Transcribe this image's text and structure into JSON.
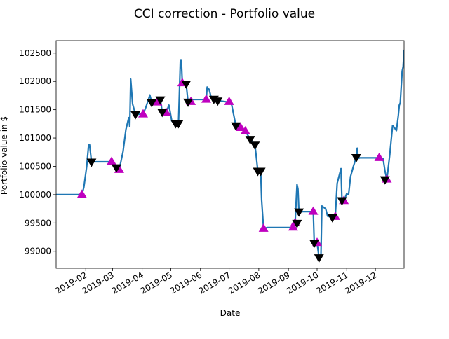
{
  "chart_data": {
    "type": "line",
    "title": "CCI correction - Portfolio value",
    "xlabel": "Date",
    "ylabel": "Portfolio value in $",
    "xlim": [
      "2019-01-01",
      "2019-12-31"
    ],
    "ylim": [
      98700,
      102720
    ],
    "grid": false,
    "x_ticks": [
      {
        "date": "2019-02-01",
        "label": "2019-02"
      },
      {
        "date": "2019-03-01",
        "label": "2019-03"
      },
      {
        "date": "2019-04-01",
        "label": "2019-04"
      },
      {
        "date": "2019-05-01",
        "label": "2019-05"
      },
      {
        "date": "2019-06-01",
        "label": "2019-06"
      },
      {
        "date": "2019-07-01",
        "label": "2019-07"
      },
      {
        "date": "2019-08-01",
        "label": "2019-08"
      },
      {
        "date": "2019-09-01",
        "label": "2019-09"
      },
      {
        "date": "2019-10-01",
        "label": "2019-10"
      },
      {
        "date": "2019-11-01",
        "label": "2019-11"
      },
      {
        "date": "2019-12-01",
        "label": "2019-12"
      }
    ],
    "y_ticks": [
      99000,
      99500,
      100000,
      100500,
      101000,
      101500,
      102000,
      102500
    ],
    "series": [
      {
        "color": "#1f77b4",
        "points": [
          [
            "2019-01-01",
            100000
          ],
          [
            "2019-01-27",
            100000
          ],
          [
            "2019-01-28",
            100000
          ],
          [
            "2019-01-30",
            100130
          ],
          [
            "2019-02-02",
            100500
          ],
          [
            "2019-02-04",
            100880
          ],
          [
            "2019-02-05",
            100880
          ],
          [
            "2019-02-07",
            100580
          ],
          [
            "2019-02-28",
            100580
          ],
          [
            "2019-03-02",
            100580
          ],
          [
            "2019-03-04",
            100480
          ],
          [
            "2019-03-08",
            100440
          ],
          [
            "2019-03-12",
            100760
          ],
          [
            "2019-03-15",
            101150
          ],
          [
            "2019-03-18",
            101360
          ],
          [
            "2019-03-19",
            101200
          ],
          [
            "2019-03-20",
            102040
          ],
          [
            "2019-03-22",
            101600
          ],
          [
            "2019-03-25",
            101420
          ],
          [
            "2019-04-02",
            101420
          ],
          [
            "2019-04-05",
            101550
          ],
          [
            "2019-04-08",
            101700
          ],
          [
            "2019-04-09",
            101760
          ],
          [
            "2019-04-11",
            101630
          ],
          [
            "2019-04-17",
            101630
          ],
          [
            "2019-04-20",
            101680
          ],
          [
            "2019-04-22",
            101460
          ],
          [
            "2019-04-26",
            101450
          ],
          [
            "2019-04-29",
            101580
          ],
          [
            "2019-05-02",
            101300
          ],
          [
            "2019-05-06",
            101260
          ],
          [
            "2019-05-09",
            101260
          ],
          [
            "2019-05-11",
            102380
          ],
          [
            "2019-05-12",
            102380
          ],
          [
            "2019-05-13",
            101970
          ],
          [
            "2019-05-17",
            101960
          ],
          [
            "2019-05-19",
            101640
          ],
          [
            "2019-05-22",
            101680
          ],
          [
            "2019-06-07",
            101680
          ],
          [
            "2019-06-08",
            101900
          ],
          [
            "2019-06-10",
            101860
          ],
          [
            "2019-06-12",
            101730
          ],
          [
            "2019-06-15",
            101690
          ],
          [
            "2019-06-19",
            101660
          ],
          [
            "2019-06-28",
            101640
          ],
          [
            "2019-07-03",
            101640
          ],
          [
            "2019-07-08",
            101220
          ],
          [
            "2019-07-13",
            101180
          ],
          [
            "2019-07-18",
            101120
          ],
          [
            "2019-07-23",
            100980
          ],
          [
            "2019-07-28",
            100880
          ],
          [
            "2019-07-31",
            100420
          ],
          [
            "2019-08-01",
            100420
          ],
          [
            "2019-08-03",
            100420
          ],
          [
            "2019-08-04",
            99900
          ],
          [
            "2019-08-06",
            99400
          ],
          [
            "2019-08-10",
            99420
          ],
          [
            "2019-09-01",
            99420
          ],
          [
            "2019-09-06",
            99420
          ],
          [
            "2019-09-08",
            99500
          ],
          [
            "2019-09-10",
            100180
          ],
          [
            "2019-09-11",
            100100
          ],
          [
            "2019-09-12",
            99700
          ],
          [
            "2019-09-24",
            99700
          ],
          [
            "2019-09-27",
            99700
          ],
          [
            "2019-09-28",
            99150
          ],
          [
            "2019-10-01",
            99150
          ],
          [
            "2019-10-03",
            98890
          ],
          [
            "2019-10-05",
            98890
          ],
          [
            "2019-10-06",
            99800
          ],
          [
            "2019-10-10",
            99750
          ],
          [
            "2019-10-12",
            99620
          ],
          [
            "2019-10-17",
            99600
          ],
          [
            "2019-10-20",
            99610
          ],
          [
            "2019-10-22",
            100200
          ],
          [
            "2019-10-26",
            100460
          ],
          [
            "2019-10-27",
            99900
          ],
          [
            "2019-10-29",
            99890
          ],
          [
            "2019-11-01",
            100020
          ],
          [
            "2019-11-02",
            100000
          ],
          [
            "2019-11-03",
            100010
          ],
          [
            "2019-11-05",
            100320
          ],
          [
            "2019-11-08",
            100500
          ],
          [
            "2019-11-11",
            100660
          ],
          [
            "2019-11-12",
            100820
          ],
          [
            "2019-11-13",
            100640
          ],
          [
            "2019-11-15",
            100650
          ],
          [
            "2019-12-05",
            100650
          ],
          [
            "2019-12-09",
            100640
          ],
          [
            "2019-12-11",
            100420
          ],
          [
            "2019-12-13",
            100270
          ],
          [
            "2019-12-16",
            100700
          ],
          [
            "2019-12-19",
            101220
          ],
          [
            "2019-12-21",
            101180
          ],
          [
            "2019-12-23",
            101130
          ],
          [
            "2019-12-25",
            101400
          ],
          [
            "2019-12-26",
            101580
          ],
          [
            "2019-12-27",
            101620
          ],
          [
            "2019-12-28",
            101900
          ],
          [
            "2019-12-29",
            102180
          ],
          [
            "2019-12-30",
            102260
          ],
          [
            "2019-12-31",
            102560
          ]
        ]
      }
    ],
    "buy_markers": {
      "color": "#bf00bf",
      "shape": "triangle-up",
      "points": [
        [
          "2019-01-28",
          100000
        ],
        [
          "2019-02-28",
          100580
        ],
        [
          "2019-03-08",
          100440
        ],
        [
          "2019-04-02",
          101420
        ],
        [
          "2019-04-17",
          101630
        ],
        [
          "2019-04-26",
          101450
        ],
        [
          "2019-05-13",
          101970
        ],
        [
          "2019-05-22",
          101640
        ],
        [
          "2019-06-07",
          101680
        ],
        [
          "2019-07-01",
          101640
        ],
        [
          "2019-07-13",
          101180
        ],
        [
          "2019-07-18",
          101120
        ],
        [
          "2019-08-06",
          99400
        ],
        [
          "2019-09-06",
          99420
        ],
        [
          "2019-09-08",
          99500
        ],
        [
          "2019-09-27",
          99700
        ],
        [
          "2019-10-01",
          99150
        ],
        [
          "2019-10-20",
          99610
        ],
        [
          "2019-10-29",
          99890
        ],
        [
          "2019-12-05",
          100650
        ],
        [
          "2019-12-13",
          100270
        ]
      ]
    },
    "sell_markers": {
      "color": "#000000",
      "shape": "triangle-down",
      "points": [
        [
          "2019-02-07",
          100580
        ],
        [
          "2019-03-05",
          100480
        ],
        [
          "2019-03-25",
          101420
        ],
        [
          "2019-04-11",
          101630
        ],
        [
          "2019-04-20",
          101680
        ],
        [
          "2019-04-22",
          101460
        ],
        [
          "2019-05-06",
          101260
        ],
        [
          "2019-05-09",
          101260
        ],
        [
          "2019-05-17",
          101960
        ],
        [
          "2019-05-19",
          101640
        ],
        [
          "2019-06-15",
          101690
        ],
        [
          "2019-06-19",
          101660
        ],
        [
          "2019-07-08",
          101220
        ],
        [
          "2019-07-23",
          100980
        ],
        [
          "2019-07-28",
          100880
        ],
        [
          "2019-07-31",
          100420
        ],
        [
          "2019-08-03",
          100420
        ],
        [
          "2019-09-10",
          99500
        ],
        [
          "2019-09-12",
          99700
        ],
        [
          "2019-09-28",
          99150
        ],
        [
          "2019-10-03",
          98890
        ],
        [
          "2019-10-17",
          99600
        ],
        [
          "2019-10-27",
          99900
        ],
        [
          "2019-11-11",
          100660
        ],
        [
          "2019-12-11",
          100270
        ]
      ]
    }
  }
}
